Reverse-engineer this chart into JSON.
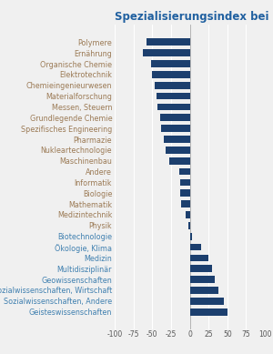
{
  "title": "Spezialisierungsindex bei Publikationen",
  "categories": [
    "Polymere",
    "Ernährung",
    "Organische Chemie",
    "Elektrotechnik",
    "Chemieingenieurwesen",
    "Materialforschung",
    "Messen, Steuern",
    "Grundlegende Chemie",
    "Spezifisches Engineering",
    "Pharmazie",
    "Nukleartechnologie",
    "Maschinenbau",
    "Andere",
    "Informatik",
    "Biologie",
    "Mathematik",
    "Medizintechnik",
    "Physik",
    "Biotechnologie",
    "Ökologie, Klima",
    "Medizin",
    "Multidisziplinär",
    "Geowissenschaften",
    "Sozialwissenschaften, Wirtschaft",
    "Sozialwissenschaften, Andere",
    "Geisteswissenschaften"
  ],
  "values": [
    -58,
    -62,
    -52,
    -50,
    -47,
    -44,
    -43,
    -40,
    -38,
    -34,
    -32,
    -27,
    -14,
    -13,
    -13,
    -11,
    -5,
    -2,
    3,
    15,
    25,
    30,
    33,
    38,
    46,
    50
  ],
  "bar_color": "#1c3f6e",
  "xlim": [
    -100,
    100
  ],
  "xticks": [
    -100,
    -75,
    -50,
    -25,
    0,
    25,
    50,
    75,
    100
  ],
  "xtick_labels": [
    "-100",
    "-75",
    "-50",
    "-25",
    "0",
    "25",
    "50",
    "75",
    "100"
  ],
  "title_color": "#2060a0",
  "label_color_negative": "#9b7a55",
  "label_color_positive": "#4080b0",
  "background_color": "#f0f0f0",
  "grid_color": "#ffffff",
  "title_fontsize": 8.5,
  "tick_fontsize": 5.5,
  "label_fontsize": 5.8,
  "bar_height": 0.65
}
